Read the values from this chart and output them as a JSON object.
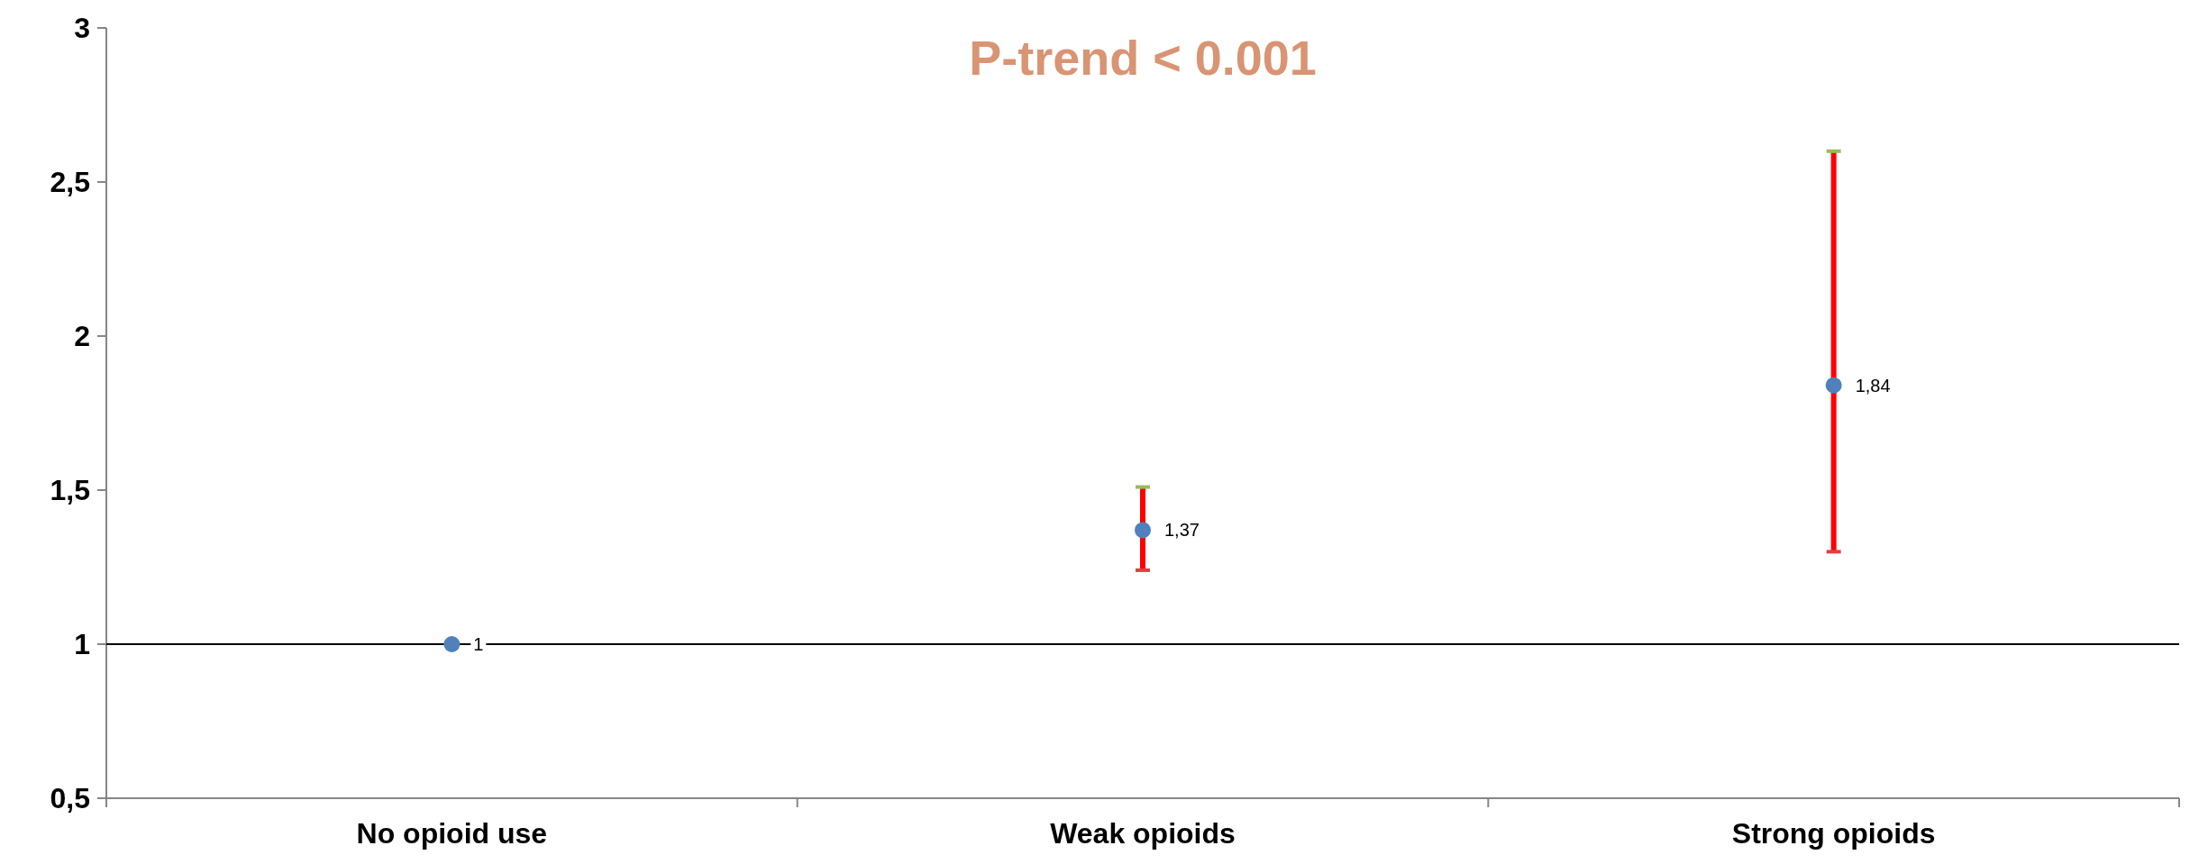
{
  "chart_data": {
    "type": "scatter",
    "title": "P-trend < 0.001",
    "categories": [
      "No opioid use",
      "Weak opioids",
      "Strong opioids"
    ],
    "series": [
      {
        "color": "#4f81bd",
        "values": [
          1,
          1.37,
          1.84
        ],
        "errors": [
          null,
          [
            1.24,
            1.51
          ],
          [
            1.3,
            2.6
          ]
        ],
        "value_labels": [
          "1",
          "1,37",
          "1,84"
        ]
      }
    ],
    "ylim": [
      0.5,
      3
    ],
    "yticks": [
      {
        "value": 0.5,
        "label": "0,5"
      },
      1,
      {
        "value": 1.5,
        "label": "1,5"
      },
      2,
      {
        "value": 2.5,
        "label": "2,5"
      },
      3
    ],
    "ref_lines": [
      {
        "axis": "y",
        "value": 1,
        "color": "#000000"
      }
    ],
    "grid": false,
    "marker": "circle"
  }
}
